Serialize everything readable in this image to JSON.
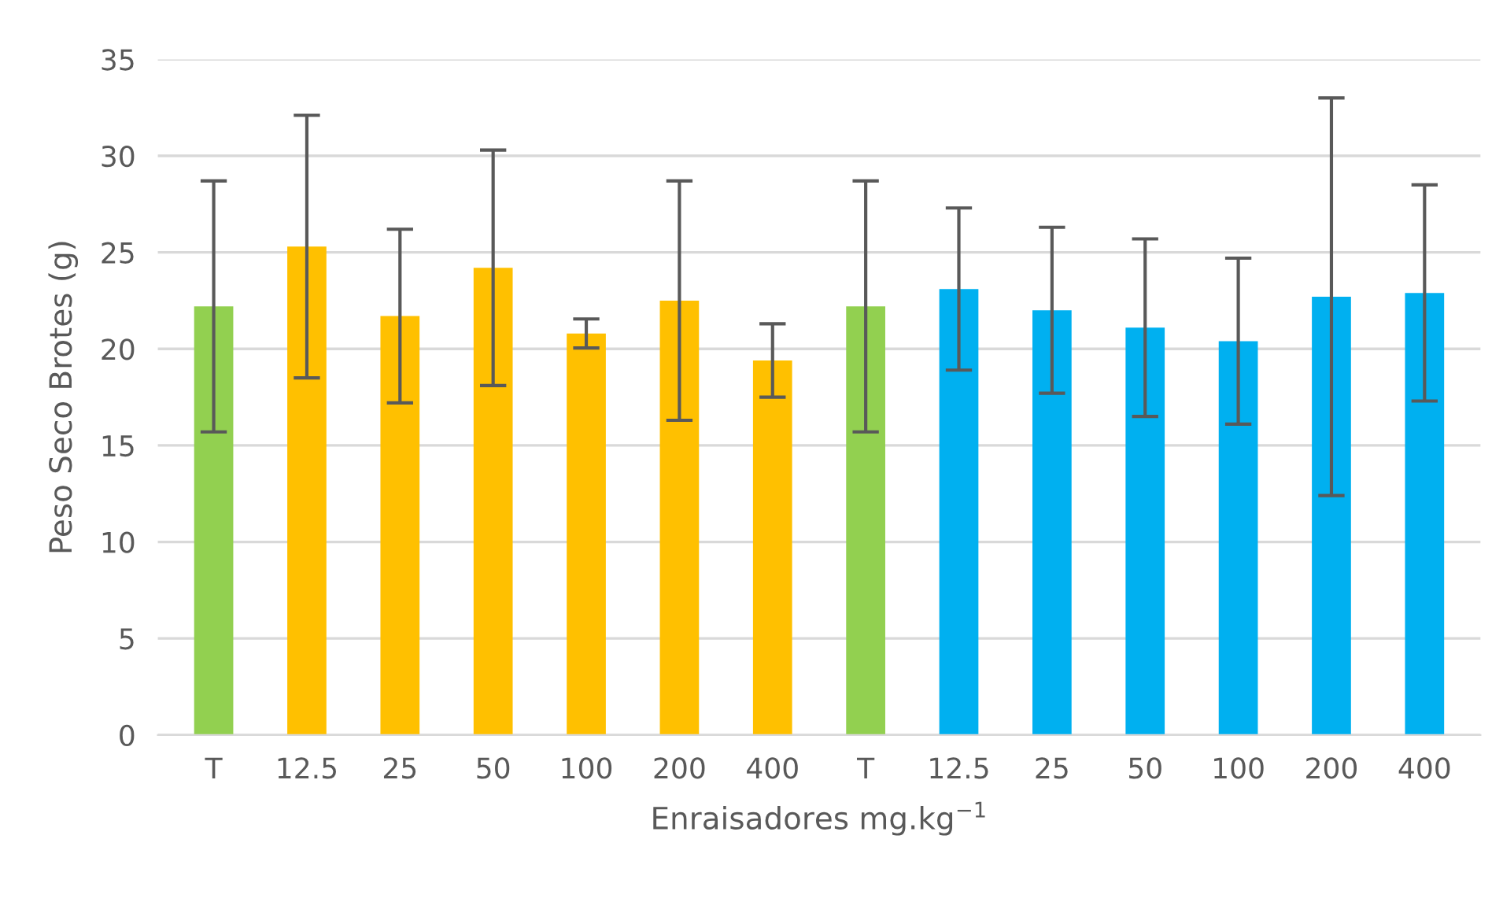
{
  "chart_data": {
    "type": "bar",
    "xlabel": "Enraisadores mg.kg$^{−1}$",
    "ylabel": "Peso Seco Brotes (g)",
    "categories": [
      "T",
      "12.5",
      "25",
      "50",
      "100",
      "200",
      "400",
      "T",
      "12.5",
      "25",
      "50",
      "100",
      "200",
      "400"
    ],
    "values": [
      22.2,
      25.3,
      21.7,
      24.2,
      20.8,
      22.5,
      19.4,
      22.2,
      23.1,
      22.0,
      21.1,
      20.4,
      22.7,
      22.9
    ],
    "errors": [
      6.5,
      6.8,
      4.5,
      6.1,
      0.75,
      6.2,
      1.9,
      6.5,
      4.2,
      4.3,
      4.6,
      4.3,
      10.3,
      5.6
    ],
    "colors": [
      "#92d050",
      "#ffc000",
      "#ffc000",
      "#ffc000",
      "#ffc000",
      "#ffc000",
      "#ffc000",
      "#92d050",
      "#00b0f0",
      "#00b0f0",
      "#00b0f0",
      "#00b0f0",
      "#00b0f0",
      "#00b0f0"
    ],
    "ylim": [
      0,
      35
    ],
    "yticks": [
      0,
      5,
      10,
      15,
      20,
      25,
      30,
      35
    ],
    "grid": "y",
    "legend": false
  }
}
